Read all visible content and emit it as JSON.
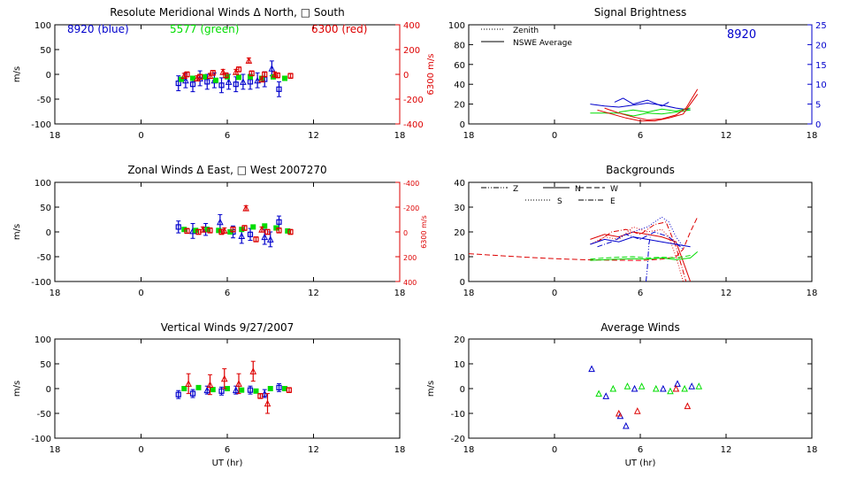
{
  "colors": {
    "axes": "#000000",
    "blue": "#0000cc",
    "green": "#00dd00",
    "red": "#dd0000"
  },
  "chart_data": [
    {
      "id": "meridional",
      "type": "scatter",
      "title": "Resolute Meridional Winds Δ North, □ South",
      "ylabel": "m/s",
      "right_ylabel": "6300 m/s",
      "xlim": [
        18,
        42
      ],
      "ylim": [
        -100,
        100
      ],
      "right_ylim": [
        -400,
        400
      ],
      "xticks": [
        18,
        24,
        30,
        36,
        42
      ],
      "xtick_labels": [
        "18",
        "0",
        "6",
        "12",
        "18"
      ],
      "yticks": [
        -100,
        -50,
        0,
        50,
        100
      ],
      "ytick_labels": [
        "-100",
        "-50",
        "0",
        "50",
        "100"
      ],
      "right_yticks": [
        -400,
        -200,
        0,
        200,
        400
      ],
      "right_ytick_labels": [
        "-400",
        "-200",
        "0",
        "200",
        "400"
      ],
      "annotations": [
        {
          "text": "8920 (blue)",
          "color": "blue"
        },
        {
          "text": "5577 (green)",
          "color": "green"
        },
        {
          "text": "6300 (red)",
          "color": "red"
        }
      ],
      "series": [
        {
          "color": "blue",
          "marker": "square",
          "err": 15,
          "x": [
            26.6,
            27.6,
            28.6,
            29.6,
            30.6,
            31.6,
            32.6,
            33.6
          ],
          "y": [
            -18,
            -20,
            -15,
            -22,
            -20,
            -15,
            -10,
            -30
          ]
        },
        {
          "color": "blue",
          "marker": "triangle",
          "err": 15,
          "x": [
            27.1,
            28.1,
            29.1,
            30.1,
            31.1,
            32.1,
            33.1
          ],
          "y": [
            -12,
            -8,
            -12,
            -15,
            -15,
            -12,
            12
          ]
        },
        {
          "color": "green",
          "marker": "filled-square",
          "err": 0,
          "x": [
            26.8,
            27.6,
            28.4,
            29.2,
            30.0,
            30.8,
            31.6,
            32.4,
            33.2,
            34.0
          ],
          "y": [
            -10,
            -8,
            -5,
            -12,
            -5,
            -6,
            -5,
            -8,
            -5,
            -8
          ]
        },
        {
          "color": "red",
          "marker": "square",
          "err": 5,
          "x": [
            27.2,
            28.1,
            29.0,
            29.9,
            30.8,
            31.7,
            32.6,
            33.5,
            34.4
          ],
          "y": [
            0,
            -5,
            3,
            -2,
            10,
            2,
            0,
            -2,
            -3
          ]
        },
        {
          "color": "red",
          "marker": "triangle",
          "err": 5,
          "x": [
            27.0,
            27.9,
            28.8,
            29.7,
            30.6,
            31.5,
            32.4,
            33.3
          ],
          "y": [
            -3,
            -8,
            -3,
            5,
            5,
            28,
            -10,
            0
          ]
        }
      ]
    },
    {
      "id": "brightness",
      "type": "line",
      "title": "Signal Brightness",
      "xlim": [
        18,
        42
      ],
      "ylim": [
        0,
        100
      ],
      "right_ylim": [
        0,
        25
      ],
      "xticks": [
        18,
        24,
        30,
        36,
        42
      ],
      "xtick_labels": [
        "18",
        "0",
        "6",
        "12",
        "18"
      ],
      "yticks": [
        0,
        20,
        40,
        60,
        80,
        100
      ],
      "ytick_labels": [
        "0",
        "20",
        "40",
        "60",
        "80",
        "100"
      ],
      "right_yticks": [
        0,
        5,
        10,
        15,
        20,
        25
      ],
      "right_ytick_labels": [
        "0",
        "5",
        "10",
        "15",
        "20",
        "25"
      ],
      "legend": [
        {
          "label": "Zenith",
          "dash": "dotted"
        },
        {
          "label": "NSWE Average",
          "dash": "solid"
        }
      ],
      "annotation": "8920",
      "series": [
        {
          "color": "blue",
          "dash": "solid",
          "x": [
            26.5,
            27.5,
            28.5,
            29.5,
            30.5,
            31.5,
            32.5,
            33.5
          ],
          "y": [
            20,
            18,
            17,
            19,
            21,
            19,
            16,
            14
          ]
        },
        {
          "color": "blue",
          "dash": "solid",
          "x": [
            28.2,
            28.8,
            29.5,
            30.5,
            31.5,
            32.0
          ],
          "y": [
            22,
            26,
            20,
            24,
            18,
            22
          ]
        },
        {
          "color": "green",
          "dash": "solid",
          "x": [
            26.5,
            27.5,
            28.5,
            29.5,
            30.5,
            31.5,
            32.5,
            33.5
          ],
          "y": [
            11,
            11,
            11,
            8,
            11,
            10,
            12,
            14
          ]
        },
        {
          "color": "green",
          "dash": "solid",
          "x": [
            28.5,
            29.5,
            30.5,
            31.5,
            32.5,
            33.5
          ],
          "y": [
            12,
            14,
            12,
            15,
            13,
            16
          ]
        },
        {
          "color": "red",
          "dash": "solid",
          "x": [
            27.0,
            28.0,
            29.0,
            30.0,
            31.0,
            32.0,
            33.0,
            33.5,
            34.0
          ],
          "y": [
            14,
            10,
            6,
            3,
            3,
            6,
            10,
            20,
            30
          ]
        },
        {
          "color": "red",
          "dash": "solid",
          "x": [
            27.5,
            28.5,
            29.5,
            30.5,
            31.5,
            32.5,
            33.2,
            34.0
          ],
          "y": [
            16,
            11,
            7,
            4,
            5,
            9,
            16,
            35
          ]
        }
      ]
    },
    {
      "id": "zonal",
      "type": "scatter",
      "title": "Zonal Winds Δ East, □ West 2007270",
      "ylabel": "m/s",
      "right_ylabel": "6300 m/s",
      "xlim": [
        18,
        42
      ],
      "ylim": [
        -100,
        100
      ],
      "right_ylim": [
        -400,
        400
      ],
      "xticks": [
        18,
        24,
        30,
        36,
        42
      ],
      "xtick_labels": [
        "18",
        "0",
        "6",
        "12",
        "18"
      ],
      "yticks": [
        -100,
        -50,
        0,
        50,
        100
      ],
      "ytick_labels": [
        "-100",
        "-50",
        "0",
        "50",
        "100"
      ],
      "right_yticks": [
        -400,
        -200,
        0,
        200,
        400
      ],
      "right_ytick_labels": [
        "400",
        "200",
        "0",
        "-200",
        "-400"
      ],
      "series": [
        {
          "color": "blue",
          "marker": "square",
          "err": 12,
          "x": [
            26.6,
            28.5,
            30.4,
            31.6,
            33.6
          ],
          "y": [
            10,
            5,
            0,
            -5,
            20
          ]
        },
        {
          "color": "blue",
          "marker": "triangle",
          "err": 15,
          "x": [
            27.6,
            29.5,
            31.0,
            32.6,
            33.0
          ],
          "y": [
            2,
            20,
            -8,
            -10,
            -15
          ]
        },
        {
          "color": "green",
          "marker": "filled-square",
          "err": 0,
          "x": [
            27.0,
            27.8,
            28.6,
            29.4,
            30.2,
            31.0,
            31.8,
            32.6,
            33.4,
            34.2
          ],
          "y": [
            5,
            3,
            5,
            3,
            0,
            5,
            10,
            12,
            8,
            2
          ]
        },
        {
          "color": "red",
          "marker": "square",
          "err": 5,
          "x": [
            27.2,
            28.0,
            28.8,
            29.6,
            30.4,
            31.2,
            32.0,
            32.8,
            33.6,
            34.4
          ],
          "y": [
            2,
            0,
            3,
            0,
            5,
            8,
            -15,
            0,
            3,
            0
          ]
        },
        {
          "color": "red",
          "marker": "triangle",
          "err": 5,
          "x": [
            28.3,
            29.8,
            31.3,
            32.4
          ],
          "y": [
            5,
            3,
            48,
            5
          ]
        }
      ]
    },
    {
      "id": "backgrounds",
      "type": "line",
      "title": "Backgrounds",
      "xlim": [
        18,
        42
      ],
      "ylim": [
        0,
        40
      ],
      "xticks": [
        18,
        24,
        30,
        36,
        42
      ],
      "xtick_labels": [
        "18",
        "0",
        "6",
        "12",
        "18"
      ],
      "yticks": [
        0,
        10,
        20,
        30,
        40
      ],
      "ytick_labels": [
        "0",
        "10",
        "20",
        "30",
        "40"
      ],
      "legend": [
        {
          "label": "Z",
          "dash": "dashdotdot"
        },
        {
          "label": "N",
          "dash": "solid"
        },
        {
          "label": "W",
          "dash": "dashed"
        },
        {
          "label": "S",
          "dash": "dotted"
        },
        {
          "label": "E",
          "dash": "dashdot"
        }
      ],
      "series": [
        {
          "color": "red",
          "dash": "dashed",
          "x": [
            18.0,
            20.0,
            22.0,
            24.0,
            26.0,
            28.0,
            30.0,
            31.5,
            32.5,
            33.0,
            33.5,
            34.0
          ],
          "y": [
            11.2,
            10.5,
            9.8,
            9.2,
            8.8,
            8.6,
            8.5,
            9.0,
            10.0,
            13.0,
            20.0,
            26.0
          ]
        },
        {
          "color": "red",
          "dash": "solid",
          "x": [
            26.5,
            27.5,
            28.5,
            29.5,
            30.5,
            31.5,
            32.5,
            33.0,
            33.5
          ],
          "y": [
            17,
            19,
            18,
            20,
            19,
            18,
            16,
            8,
            0
          ]
        },
        {
          "color": "red",
          "dash": "dotted",
          "x": [
            26.5,
            27.5,
            28.5,
            29.5,
            30.5,
            31.5,
            32.0,
            32.5,
            33.0
          ],
          "y": [
            15,
            18,
            17,
            22,
            20,
            21,
            18,
            10,
            0
          ]
        },
        {
          "color": "red",
          "dash": "dashdot",
          "x": [
            27.0,
            28.0,
            29.0,
            30.0,
            31.0,
            31.8,
            32.5,
            33.2
          ],
          "y": [
            16,
            20,
            21,
            19,
            23,
            24,
            14,
            0
          ]
        },
        {
          "color": "blue",
          "dash": "solid",
          "x": [
            26.5,
            27.5,
            28.5,
            29.5,
            30.5,
            31.5,
            32.5,
            33.5
          ],
          "y": [
            15,
            17,
            16,
            18,
            17,
            16,
            15,
            14
          ]
        },
        {
          "color": "blue",
          "dash": "dotted",
          "x": [
            28.5,
            29.5,
            30.5,
            31.5,
            32.0,
            32.5,
            33.0
          ],
          "y": [
            18,
            20,
            22,
            26,
            24,
            18,
            14
          ]
        },
        {
          "color": "blue",
          "dash": "dashdot",
          "x": [
            27.0,
            28.0,
            29.0,
            30.0,
            31.0,
            32.0,
            33.0
          ],
          "y": [
            14,
            16,
            19,
            17,
            20,
            18,
            13
          ]
        },
        {
          "color": "blue",
          "dash": "dashdotdot",
          "x": [
            30.4,
            30.5,
            30.6,
            30.7
          ],
          "y": [
            0,
            6,
            15,
            18
          ]
        },
        {
          "color": "green",
          "dash": "solid",
          "x": [
            26.5,
            27.5,
            28.5,
            29.5,
            30.5,
            31.5,
            32.5,
            33.5,
            34.0
          ],
          "y": [
            8.5,
            8.8,
            9.0,
            9.2,
            9.0,
            9.5,
            8.8,
            9.5,
            12.0
          ]
        },
        {
          "color": "green",
          "dash": "dashed",
          "x": [
            26.5,
            27.5,
            28.5,
            29.5,
            30.5,
            31.5,
            32.5,
            33.5
          ],
          "y": [
            9.0,
            9.5,
            9.8,
            10.0,
            9.5,
            9.8,
            9.5,
            10.5
          ]
        }
      ]
    },
    {
      "id": "vertical",
      "type": "scatter",
      "title": "Vertical Winds 9/27/2007",
      "ylabel": "m/s",
      "xlabel": "UT (hr)",
      "xlim": [
        18,
        42
      ],
      "ylim": [
        -100,
        100
      ],
      "xticks": [
        18,
        24,
        30,
        36,
        42
      ],
      "xtick_labels": [
        "18",
        "0",
        "6",
        "12",
        "18"
      ],
      "yticks": [
        -100,
        -50,
        0,
        50,
        100
      ],
      "ytick_labels": [
        "-100",
        "-50",
        "0",
        "50",
        "100"
      ],
      "series": [
        {
          "color": "blue",
          "marker": "square",
          "err": 8,
          "x": [
            26.6,
            27.6,
            29.6,
            31.6,
            33.6
          ],
          "y": [
            -12,
            -10,
            -5,
            -3,
            2
          ]
        },
        {
          "color": "blue",
          "marker": "triangle",
          "err": 8,
          "x": [
            28.6,
            30.6,
            32.6
          ],
          "y": [
            -3,
            -3,
            -10
          ]
        },
        {
          "color": "green",
          "marker": "filled-square",
          "err": 0,
          "x": [
            27.0,
            28.0,
            29.0,
            30.0,
            31.0,
            32.0,
            33.0,
            34.0
          ],
          "y": [
            0,
            2,
            -2,
            0,
            -3,
            -5,
            0,
            0
          ]
        },
        {
          "color": "red",
          "marker": "triangle",
          "err": 20,
          "x": [
            27.3,
            28.8,
            29.8,
            30.8,
            31.8,
            32.8
          ],
          "y": [
            10,
            8,
            20,
            10,
            35,
            -30
          ]
        },
        {
          "color": "red",
          "marker": "square",
          "err": 5,
          "x": [
            32.3,
            34.3
          ],
          "y": [
            -15,
            -3
          ]
        }
      ]
    },
    {
      "id": "average",
      "type": "scatter",
      "title": "Average Winds",
      "ylabel": "m/s",
      "xlabel": "UT (hr)",
      "xlim": [
        18,
        42
      ],
      "ylim": [
        -20,
        20
      ],
      "xticks": [
        18,
        24,
        30,
        36,
        42
      ],
      "xtick_labels": [
        "18",
        "0",
        "6",
        "12",
        "18"
      ],
      "yticks": [
        -20,
        -10,
        0,
        10,
        20
      ],
      "ytick_labels": [
        "-20",
        "-10",
        "0",
        "10",
        "20"
      ],
      "series": [
        {
          "color": "blue",
          "marker": "triangle",
          "err": 0,
          "x": [
            26.6,
            27.6,
            28.6,
            29.0,
            29.6,
            31.6,
            32.6,
            33.6
          ],
          "y": [
            8,
            -3,
            -11,
            -15,
            0,
            0,
            2,
            1
          ]
        },
        {
          "color": "green",
          "marker": "triangle",
          "err": 0,
          "x": [
            27.1,
            28.1,
            29.1,
            30.1,
            31.1,
            32.1,
            33.1,
            34.1
          ],
          "y": [
            -2,
            0,
            1,
            1,
            0,
            -1,
            0,
            1
          ]
        },
        {
          "color": "red",
          "marker": "triangle",
          "err": 0,
          "x": [
            28.5,
            29.8,
            32.5,
            33.3
          ],
          "y": [
            -10,
            -9,
            0,
            -7
          ]
        }
      ]
    }
  ]
}
